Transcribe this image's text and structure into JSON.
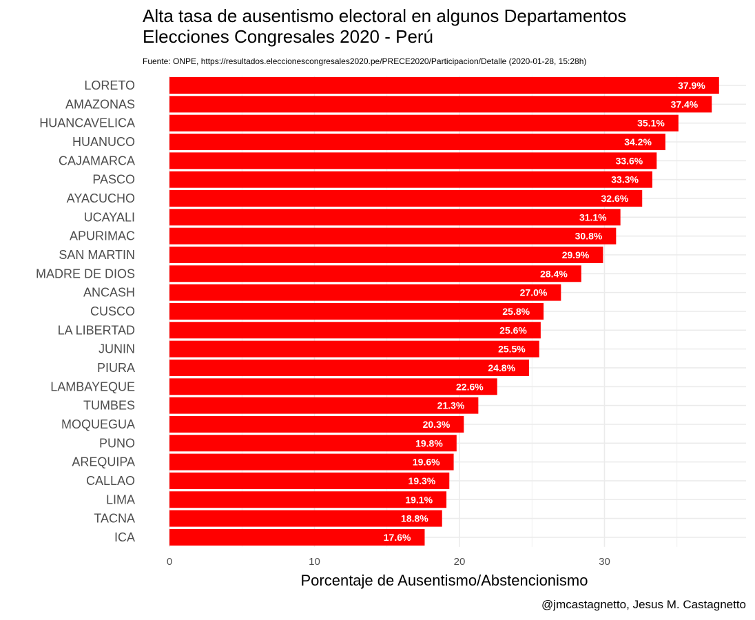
{
  "chart_data": {
    "type": "bar",
    "orientation": "horizontal",
    "title": "Alta tasa de ausentismo electoral en algunos Departamentos\nElecciones Congresales 2020 - Perú",
    "subtitle": "Fuente: ONPE, https://resultados.eleccionescongresales2020.pe/PRECE2020/Participacion/Detalle (2020-01-28, 15:28h)",
    "xlabel": "Porcentaje de Ausentismo/Abstencionismo",
    "ylabel": "",
    "caption": "@jmcastagnetto, Jesus M. Castagnetto",
    "categories": [
      "LORETO",
      "AMAZONAS",
      "HUANCAVELICA",
      "HUANUCO",
      "CAJAMARCA",
      "PASCO",
      "AYACUCHO",
      "UCAYALI",
      "APURIMAC",
      "SAN MARTIN",
      "MADRE DE DIOS",
      "ANCASH",
      "CUSCO",
      "LA LIBERTAD",
      "JUNIN",
      "PIURA",
      "LAMBAYEQUE",
      "TUMBES",
      "MOQUEGUA",
      "PUNO",
      "AREQUIPA",
      "CALLAO",
      "LIMA",
      "TACNA",
      "ICA"
    ],
    "values": [
      37.9,
      37.4,
      35.1,
      34.2,
      33.6,
      33.3,
      32.6,
      31.1,
      30.8,
      29.9,
      28.4,
      27.0,
      25.8,
      25.6,
      25.5,
      24.8,
      22.6,
      21.3,
      20.3,
      19.8,
      19.6,
      19.3,
      19.1,
      18.8,
      17.6
    ],
    "value_labels": [
      "37.9%",
      "37.4%",
      "35.1%",
      "34.2%",
      "33.6%",
      "33.3%",
      "32.6%",
      "31.1%",
      "30.8%",
      "29.9%",
      "28.4%",
      "27.0%",
      "25.8%",
      "25.6%",
      "25.5%",
      "24.8%",
      "22.6%",
      "21.3%",
      "20.3%",
      "19.8%",
      "19.6%",
      "19.3%",
      "19.1%",
      "18.8%",
      "17.6%"
    ],
    "xticks": [
      0,
      10,
      20,
      30
    ],
    "xlim": [
      0,
      39.8
    ],
    "grid": true,
    "bar_color": "#ff0000",
    "grid_color": "#ebebeb",
    "label_color": "#ffffff"
  }
}
